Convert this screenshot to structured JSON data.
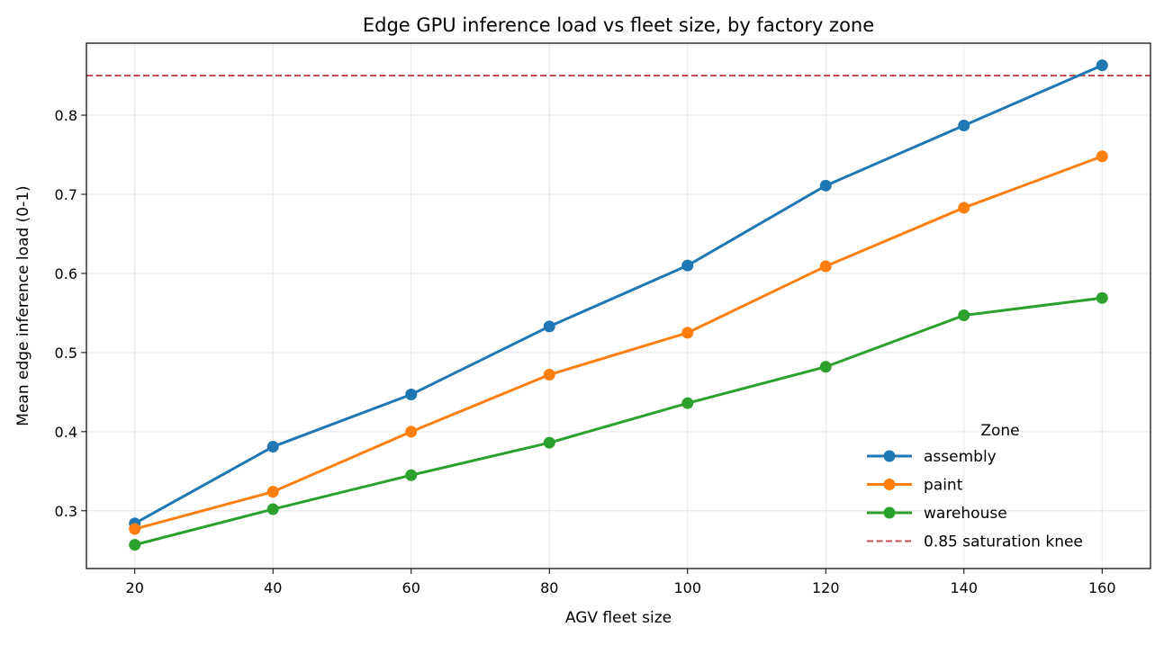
{
  "chart_data": {
    "type": "line",
    "title": "Edge GPU inference load vs fleet size, by factory zone",
    "xlabel": "AGV fleet size",
    "ylabel": "Mean edge inference load (0-1)",
    "x": [
      20,
      40,
      60,
      80,
      100,
      120,
      140,
      160
    ],
    "x_ticks": [
      20,
      40,
      60,
      80,
      100,
      120,
      140,
      160
    ],
    "y_ticks": [
      0.3,
      0.4,
      0.5,
      0.6,
      0.7,
      0.8
    ],
    "xlim": [
      13,
      167
    ],
    "ylim": [
      0.227,
      0.891
    ],
    "grid": true,
    "series": [
      {
        "name": "assembly",
        "color": "#1f77b4",
        "values": [
          0.284,
          0.381,
          0.447,
          0.533,
          0.61,
          0.711,
          0.787,
          0.863
        ]
      },
      {
        "name": "paint",
        "color": "#ff7f0e",
        "values": [
          0.277,
          0.324,
          0.4,
          0.472,
          0.525,
          0.609,
          0.683,
          0.748
        ]
      },
      {
        "name": "warehouse",
        "color": "#2ca02c",
        "values": [
          0.257,
          0.302,
          0.345,
          0.386,
          0.436,
          0.482,
          0.547,
          0.569
        ]
      }
    ],
    "reference_line": {
      "label": "0.85 saturation knee",
      "y": 0.85,
      "color": "#c44e52",
      "style": "dashed"
    },
    "legend": {
      "title": "Zone",
      "placement": "lower-right"
    }
  }
}
